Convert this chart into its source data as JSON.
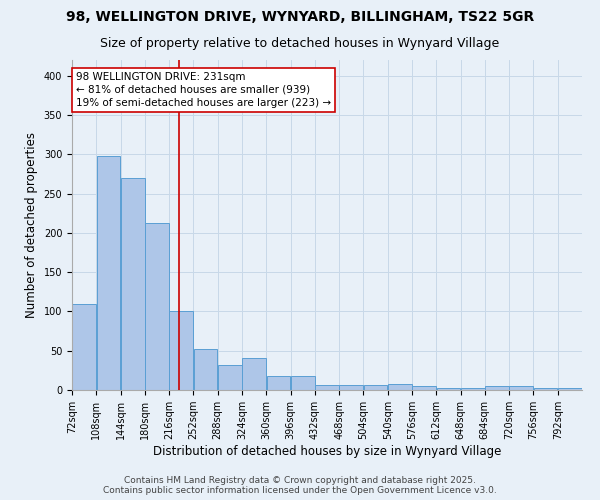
{
  "title_line1": "98, WELLINGTON DRIVE, WYNYARD, BILLINGHAM, TS22 5GR",
  "title_line2": "Size of property relative to detached houses in Wynyard Village",
  "xlabel": "Distribution of detached houses by size in Wynyard Village",
  "ylabel": "Number of detached properties",
  "bar_values": [
    110,
    298,
    270,
    213,
    101,
    52,
    32,
    41,
    18,
    18,
    7,
    7,
    6,
    8,
    5,
    3,
    2,
    5,
    5,
    2,
    3
  ],
  "bin_edges": [
    72,
    108,
    144,
    180,
    216,
    252,
    288,
    324,
    360,
    396,
    432,
    468,
    504,
    540,
    576,
    612,
    648,
    684,
    720,
    756,
    792,
    828
  ],
  "bar_color": "#aec6e8",
  "bar_edge_color": "#5a9fd4",
  "marker_value": 231,
  "marker_color": "#cc0000",
  "annotation_line1": "98 WELLINGTON DRIVE: 231sqm",
  "annotation_line2": "← 81% of detached houses are smaller (939)",
  "annotation_line3": "19% of semi-detached houses are larger (223) →",
  "annotation_box_color": "#ffffff",
  "annotation_box_edge": "#cc0000",
  "grid_color": "#c8d8e8",
  "background_color": "#e8f0f8",
  "ylim": [
    0,
    420
  ],
  "yticks": [
    0,
    50,
    100,
    150,
    200,
    250,
    300,
    350,
    400
  ],
  "footer_line1": "Contains HM Land Registry data © Crown copyright and database right 2025.",
  "footer_line2": "Contains public sector information licensed under the Open Government Licence v3.0.",
  "title_fontsize": 10,
  "subtitle_fontsize": 9,
  "axis_label_fontsize": 8.5,
  "tick_fontsize": 7,
  "annotation_fontsize": 7.5,
  "footer_fontsize": 6.5
}
